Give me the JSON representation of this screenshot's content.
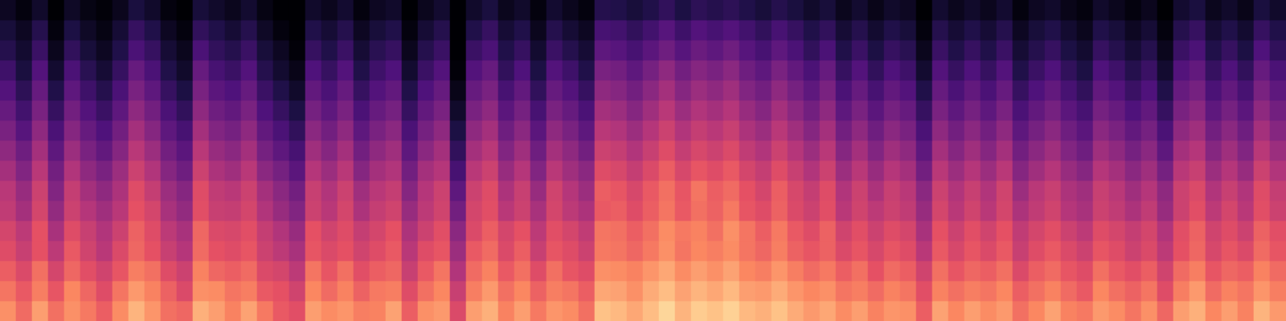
{
  "chart_data": {
    "type": "heatmap",
    "tick_labels": false,
    "grid": false,
    "zlim": [
      0,
      100
    ],
    "cells": [
      [
        6,
        2,
        8,
        0,
        7,
        3,
        1,
        5,
        12,
        8,
        2,
        0,
        11,
        8,
        5,
        9,
        3,
        0,
        0,
        8,
        5,
        9,
        2,
        6,
        8,
        0,
        5,
        9,
        0,
        8,
        12,
        5,
        8,
        2,
        9,
        5,
        2,
        15,
        14,
        11,
        14,
        18,
        13,
        17,
        15,
        17,
        14,
        11,
        15,
        12,
        8,
        11,
        5,
        9,
        4,
        8,
        6,
        0,
        9,
        5,
        8,
        5,
        9,
        2,
        6,
        8,
        4,
        2,
        8,
        5,
        2,
        5,
        0,
        9,
        12,
        5,
        8,
        4,
        12,
        8
      ],
      [
        11,
        6,
        15,
        2,
        13,
        7,
        3,
        10,
        19,
        14,
        6,
        2,
        18,
        14,
        10,
        15,
        7,
        2,
        0,
        14,
        10,
        15,
        6,
        11,
        14,
        2,
        10,
        15,
        0,
        14,
        19,
        10,
        14,
        5,
        15,
        10,
        6,
        23,
        22,
        18,
        22,
        27,
        21,
        26,
        23,
        26,
        22,
        18,
        23,
        19,
        14,
        18,
        10,
        15,
        9,
        14,
        11,
        2,
        15,
        10,
        14,
        10,
        15,
        6,
        11,
        14,
        9,
        5,
        14,
        11,
        6,
        10,
        2,
        15,
        19,
        10,
        14,
        9,
        19,
        14
      ],
      [
        15,
        9,
        20,
        5,
        18,
        11,
        6,
        14,
        24,
        19,
        10,
        5,
        24,
        18,
        15,
        20,
        11,
        6,
        1,
        19,
        14,
        20,
        10,
        16,
        19,
        5,
        15,
        20,
        0,
        20,
        24,
        14,
        19,
        9,
        20,
        15,
        10,
        29,
        27,
        23,
        28,
        33,
        27,
        32,
        29,
        33,
        27,
        23,
        29,
        24,
        18,
        24,
        14,
        20,
        13,
        19,
        16,
        5,
        20,
        14,
        19,
        14,
        20,
        10,
        15,
        19,
        13,
        9,
        19,
        15,
        10,
        15,
        5,
        20,
        24,
        14,
        19,
        13,
        25,
        18
      ],
      [
        21,
        12,
        26,
        9,
        24,
        16,
        10,
        19,
        31,
        24,
        14,
        8,
        31,
        23,
        20,
        26,
        15,
        9,
        4,
        25,
        19,
        26,
        14,
        21,
        25,
        9,
        20,
        26,
        1,
        26,
        31,
        18,
        25,
        13,
        26,
        21,
        14,
        36,
        34,
        29,
        35,
        41,
        34,
        39,
        36,
        40,
        33,
        29,
        36,
        30,
        24,
        31,
        19,
        26,
        18,
        25,
        21,
        9,
        26,
        19,
        25,
        19,
        26,
        14,
        20,
        25,
        18,
        13,
        25,
        21,
        15,
        20,
        9,
        26,
        30,
        19,
        25,
        18,
        31,
        24
      ],
      [
        26,
        17,
        31,
        14,
        29,
        21,
        15,
        24,
        36,
        29,
        19,
        13,
        36,
        28,
        25,
        31,
        20,
        14,
        8,
        30,
        24,
        31,
        19,
        26,
        30,
        14,
        25,
        31,
        4,
        31,
        36,
        23,
        30,
        18,
        31,
        26,
        19,
        41,
        39,
        34,
        40,
        46,
        39,
        44,
        41,
        45,
        38,
        34,
        41,
        35,
        29,
        36,
        24,
        31,
        23,
        30,
        26,
        14,
        31,
        24,
        30,
        24,
        31,
        19,
        25,
        30,
        23,
        18,
        30,
        26,
        20,
        25,
        14,
        31,
        35,
        24,
        30,
        23,
        36,
        29
      ],
      [
        31,
        22,
        36,
        19,
        34,
        26,
        20,
        29,
        41,
        34,
        24,
        18,
        41,
        33,
        30,
        36,
        25,
        19,
        13,
        35,
        29,
        36,
        24,
        31,
        35,
        19,
        30,
        36,
        8,
        36,
        41,
        28,
        35,
        23,
        36,
        31,
        24,
        46,
        44,
        39,
        45,
        51,
        44,
        49,
        46,
        50,
        43,
        39,
        46,
        40,
        34,
        41,
        29,
        36,
        28,
        35,
        31,
        19,
        36,
        29,
        35,
        29,
        36,
        24,
        30,
        35,
        28,
        23,
        35,
        31,
        25,
        30,
        19,
        36,
        40,
        29,
        35,
        28,
        41,
        34
      ],
      [
        36,
        27,
        41,
        24,
        39,
        31,
        25,
        34,
        46,
        39,
        29,
        23,
        46,
        38,
        35,
        41,
        30,
        24,
        18,
        40,
        34,
        41,
        29,
        36,
        40,
        24,
        35,
        41,
        13,
        41,
        46,
        33,
        40,
        28,
        41,
        36,
        29,
        51,
        49,
        44,
        50,
        56,
        49,
        54,
        51,
        55,
        48,
        44,
        51,
        45,
        39,
        46,
        34,
        41,
        33,
        40,
        36,
        24,
        41,
        34,
        40,
        34,
        41,
        29,
        35,
        40,
        33,
        28,
        40,
        36,
        30,
        35,
        24,
        41,
        45,
        34,
        40,
        33,
        46,
        39
      ],
      [
        41,
        33,
        46,
        29,
        44,
        36,
        30,
        39,
        51,
        44,
        34,
        28,
        51,
        43,
        40,
        46,
        35,
        29,
        23,
        45,
        39,
        46,
        34,
        41,
        45,
        29,
        40,
        46,
        18,
        46,
        51,
        38,
        45,
        33,
        46,
        41,
        34,
        56,
        54,
        49,
        55,
        61,
        54,
        59,
        56,
        60,
        53,
        49,
        56,
        50,
        44,
        51,
        39,
        46,
        38,
        45,
        41,
        29,
        46,
        39,
        45,
        39,
        46,
        34,
        40,
        45,
        38,
        33,
        45,
        41,
        35,
        40,
        29,
        46,
        50,
        39,
        45,
        38,
        51,
        44
      ],
      [
        46,
        38,
        51,
        34,
        49,
        41,
        36,
        44,
        56,
        49,
        39,
        33,
        56,
        48,
        45,
        51,
        40,
        35,
        28,
        50,
        44,
        51,
        39,
        46,
        49,
        34,
        46,
        50,
        23,
        51,
        56,
        43,
        50,
        38,
        51,
        45,
        40,
        61,
        59,
        54,
        60,
        66,
        59,
        64,
        61,
        65,
        58,
        54,
        61,
        55,
        49,
        56,
        44,
        51,
        43,
        50,
        46,
        34,
        51,
        44,
        50,
        44,
        51,
        39,
        45,
        50,
        43,
        39,
        50,
        46,
        40,
        45,
        35,
        51,
        55,
        44,
        50,
        43,
        56,
        49
      ],
      [
        51,
        43,
        56,
        38,
        54,
        46,
        41,
        48,
        61,
        54,
        44,
        39,
        61,
        53,
        51,
        56,
        46,
        40,
        34,
        55,
        49,
        56,
        45,
        51,
        54,
        39,
        50,
        56,
        29,
        56,
        61,
        48,
        55,
        43,
        57,
        50,
        44,
        66,
        64,
        59,
        65,
        70,
        64,
        71,
        66,
        69,
        63,
        58,
        66,
        59,
        54,
        61,
        49,
        56,
        48,
        55,
        51,
        40,
        56,
        49,
        55,
        49,
        57,
        44,
        51,
        55,
        48,
        45,
        55,
        51,
        45,
        50,
        41,
        56,
        60,
        49,
        55,
        49,
        61,
        54
      ],
      [
        53,
        46,
        58,
        42,
        56,
        50,
        45,
        51,
        63,
        58,
        47,
        42,
        62,
        55,
        54,
        58,
        49,
        43,
        38,
        56,
        51,
        58,
        48,
        54,
        57,
        43,
        52,
        57,
        34,
        58,
        62,
        51,
        56,
        47,
        58,
        52,
        48,
        65,
        66,
        61,
        66,
        71,
        65,
        70,
        67,
        72,
        64,
        61,
        67,
        60,
        56,
        62,
        51,
        57,
        52,
        56,
        53,
        43,
        58,
        51,
        57,
        51,
        58,
        48,
        53,
        57,
        50,
        47,
        56,
        53,
        48,
        53,
        43,
        56,
        62,
        52,
        58,
        51,
        62,
        56
      ],
      [
        58,
        52,
        63,
        47,
        61,
        55,
        49,
        56,
        67,
        61,
        52,
        47,
        68,
        60,
        59,
        62,
        54,
        49,
        43,
        63,
        57,
        61,
        54,
        58,
        63,
        48,
        56,
        62,
        40,
        60,
        66,
        58,
        63,
        52,
        62,
        58,
        53,
        71,
        70,
        66,
        70,
        76,
        72,
        74,
        70,
        77,
        71,
        66,
        72,
        65,
        61,
        67,
        57,
        62,
        56,
        61,
        58,
        47,
        63,
        56,
        62,
        57,
        63,
        53,
        58,
        62,
        56,
        52,
        61,
        58,
        54,
        58,
        49,
        62,
        67,
        57,
        61,
        56,
        67,
        62
      ],
      [
        61,
        55,
        63,
        52,
        65,
        57,
        51,
        60,
        68,
        63,
        55,
        50,
        69,
        63,
        61,
        64,
        56,
        52,
        47,
        64,
        60,
        63,
        57,
        61,
        65,
        51,
        61,
        64,
        44,
        65,
        69,
        60,
        66,
        55,
        64,
        61,
        56,
        72,
        71,
        68,
        72,
        77,
        71,
        75,
        73,
        76,
        71,
        68,
        73,
        67,
        64,
        67,
        60,
        64,
        59,
        64,
        61,
        51,
        65,
        59,
        64,
        60,
        65,
        55,
        61,
        65,
        60,
        56,
        64,
        61,
        56,
        60,
        52,
        63,
        68,
        59,
        64,
        60,
        69,
        64
      ],
      [
        66,
        60,
        70,
        58,
        68,
        62,
        57,
        64,
        73,
        70,
        61,
        56,
        74,
        68,
        66,
        69,
        60,
        58,
        52,
        71,
        64,
        70,
        62,
        66,
        68,
        55,
        65,
        71,
        49,
        69,
        74,
        65,
        70,
        61,
        70,
        64,
        61,
        77,
        76,
        74,
        78,
        82,
        76,
        80,
        77,
        81,
        75,
        73,
        78,
        73,
        69,
        72,
        66,
        70,
        63,
        69,
        66,
        57,
        70,
        64,
        68,
        66,
        70,
        60,
        66,
        69,
        64,
        61,
        70,
        65,
        62,
        66,
        57,
        69,
        73,
        64,
        68,
        66,
        74,
        69
      ],
      [
        71,
        65,
        73,
        64,
        75,
        68,
        61,
        71,
        79,
        74,
        67,
        60,
        77,
        76,
        71,
        73,
        65,
        63,
        57,
        75,
        69,
        74,
        67,
        72,
        73,
        61,
        70,
        75,
        55,
        73,
        79,
        70,
        75,
        67,
        73,
        71,
        66,
        82,
        81,
        77,
        83,
        87,
        81,
        85,
        82,
        86,
        80,
        79,
        83,
        78,
        75,
        77,
        71,
        73,
        69,
        74,
        71,
        62,
        74,
        70,
        73,
        71,
        75,
        66,
        70,
        74,
        69,
        65,
        75,
        70,
        67,
        71,
        61,
        73,
        79,
        69,
        74,
        71,
        78,
        73
      ],
      [
        77,
        69,
        80,
        70,
        77,
        72,
        66,
        76,
        85,
        78,
        70,
        68,
        84,
        80,
        74,
        81,
        72,
        65,
        62,
        80,
        76,
        78,
        73,
        74,
        81,
        66,
        77,
        79,
        60,
        80,
        84,
        74,
        80,
        72,
        78,
        76,
        70,
        88,
        86,
        82,
        87,
        92,
        85,
        90,
        88,
        91,
        86,
        84,
        88,
        83,
        79,
        82,
        76,
        80,
        74,
        78,
        77,
        66,
        81,
        75,
        80,
        76,
        79,
        70,
        75,
        81,
        74,
        72,
        79,
        76,
        71,
        77,
        68,
        80,
        84,
        75,
        80,
        74,
        85,
        79
      ]
    ]
  }
}
